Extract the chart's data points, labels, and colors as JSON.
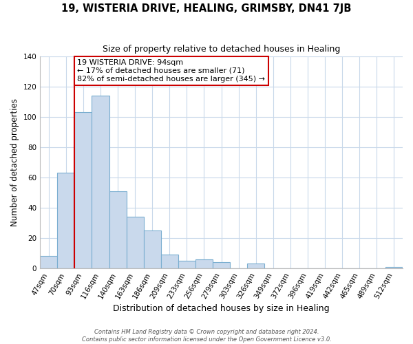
{
  "title": "19, WISTERIA DRIVE, HEALING, GRIMSBY, DN41 7JB",
  "subtitle": "Size of property relative to detached houses in Healing",
  "xlabel": "Distribution of detached houses by size in Healing",
  "ylabel": "Number of detached properties",
  "bar_labels": [
    "47sqm",
    "70sqm",
    "93sqm",
    "116sqm",
    "140sqm",
    "163sqm",
    "186sqm",
    "209sqm",
    "233sqm",
    "256sqm",
    "279sqm",
    "303sqm",
    "326sqm",
    "349sqm",
    "372sqm",
    "396sqm",
    "419sqm",
    "442sqm",
    "465sqm",
    "489sqm",
    "512sqm"
  ],
  "bar_values": [
    8,
    63,
    103,
    114,
    51,
    34,
    25,
    9,
    5,
    6,
    4,
    0,
    3,
    0,
    0,
    0,
    0,
    0,
    0,
    0,
    1
  ],
  "bar_color": "#c9d9ec",
  "bar_edge_color": "#7aaed0",
  "vline_color": "#cc0000",
  "vline_bar_index": 2,
  "annotation_title": "19 WISTERIA DRIVE: 94sqm",
  "annotation_line1": "← 17% of detached houses are smaller (71)",
  "annotation_line2": "82% of semi-detached houses are larger (345) →",
  "annotation_box_color": "#cc0000",
  "ylim": [
    0,
    140
  ],
  "yticks": [
    0,
    20,
    40,
    60,
    80,
    100,
    120,
    140
  ],
  "footer1": "Contains HM Land Registry data © Crown copyright and database right 2024.",
  "footer2": "Contains public sector information licensed under the Open Government Licence v3.0.",
  "title_fontsize": 10.5,
  "subtitle_fontsize": 9,
  "xlabel_fontsize": 9,
  "ylabel_fontsize": 8.5,
  "tick_fontsize": 7.5,
  "annotation_fontsize": 8,
  "footer_fontsize": 6
}
